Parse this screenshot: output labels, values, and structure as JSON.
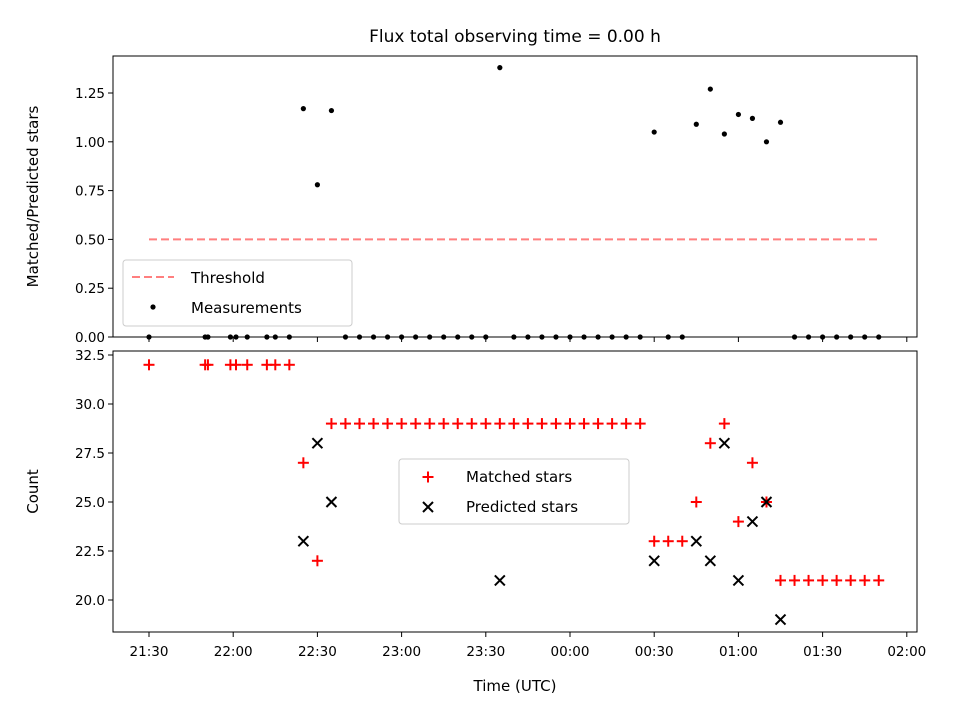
{
  "title": "Flux total observing time = 0.00 h",
  "xlabel": "Time (UTC)",
  "colors": {
    "measurement": "#000000",
    "threshold": "#ff7f7f",
    "matched": "#ff0000",
    "predicted": "#000000"
  },
  "chart_data": [
    {
      "type": "scatter",
      "panel": "top",
      "ylabel": "Matched/Predicted stars",
      "x_ticks": [
        "21:30",
        "22:00",
        "22:30",
        "23:00",
        "23:30",
        "00:00",
        "00:30",
        "01:00",
        "01:30",
        "02:00"
      ],
      "y_ticks": [
        "0.00",
        "0.25",
        "0.50",
        "0.75",
        "1.00",
        "1.25"
      ],
      "ylim": [
        0,
        1.44
      ],
      "grid": false,
      "legend_position": "lower-left",
      "threshold": {
        "name": "Threshold",
        "value": 0.5,
        "x_start": "21:30",
        "x_end": "01:50"
      },
      "series": [
        {
          "name": "Measurements",
          "points": [
            [
              "21:30",
              0
            ],
            [
              "21:50",
              0
            ],
            [
              "21:51",
              0
            ],
            [
              "21:59",
              0
            ],
            [
              "22:01",
              0
            ],
            [
              "22:05",
              0
            ],
            [
              "22:12",
              0
            ],
            [
              "22:15",
              0
            ],
            [
              "22:20",
              0
            ],
            [
              "22:25",
              1.17
            ],
            [
              "22:30",
              0.78
            ],
            [
              "22:35",
              1.16
            ],
            [
              "22:40",
              0
            ],
            [
              "22:45",
              0
            ],
            [
              "22:50",
              0
            ],
            [
              "22:55",
              0
            ],
            [
              "23:00",
              0
            ],
            [
              "23:05",
              0
            ],
            [
              "23:10",
              0
            ],
            [
              "23:15",
              0
            ],
            [
              "23:20",
              0
            ],
            [
              "23:25",
              0
            ],
            [
              "23:30",
              0
            ],
            [
              "23:35",
              1.38
            ],
            [
              "23:40",
              0
            ],
            [
              "23:45",
              0
            ],
            [
              "23:50",
              0
            ],
            [
              "23:55",
              0
            ],
            [
              "00:00",
              0
            ],
            [
              "00:05",
              0
            ],
            [
              "00:10",
              0
            ],
            [
              "00:15",
              0
            ],
            [
              "00:20",
              0
            ],
            [
              "00:25",
              0
            ],
            [
              "00:30",
              1.05
            ],
            [
              "00:35",
              0
            ],
            [
              "00:40",
              0
            ],
            [
              "00:45",
              1.09
            ],
            [
              "00:50",
              1.27
            ],
            [
              "00:55",
              1.04
            ],
            [
              "01:00",
              1.14
            ],
            [
              "01:05",
              1.12
            ],
            [
              "01:10",
              1.0
            ],
            [
              "01:15",
              1.1
            ],
            [
              "01:20",
              0
            ],
            [
              "01:25",
              0
            ],
            [
              "01:30",
              0
            ],
            [
              "01:35",
              0
            ],
            [
              "01:40",
              0
            ],
            [
              "01:45",
              0
            ],
            [
              "01:50",
              0
            ]
          ]
        }
      ]
    },
    {
      "type": "scatter",
      "panel": "bottom",
      "ylabel": "Count",
      "x_ticks": [
        "21:30",
        "22:00",
        "22:30",
        "23:00",
        "23:30",
        "00:00",
        "00:30",
        "01:00",
        "01:30",
        "02:00"
      ],
      "y_ticks": [
        "20.0",
        "22.5",
        "25.0",
        "27.5",
        "30.0",
        "32.5"
      ],
      "ylim": [
        18.4,
        32.5
      ],
      "grid": false,
      "legend_position": "center",
      "series": [
        {
          "name": "Matched stars",
          "marker": "+",
          "points": [
            [
              "21:30",
              32
            ],
            [
              "21:50",
              32
            ],
            [
              "21:51",
              32
            ],
            [
              "21:59",
              32
            ],
            [
              "22:01",
              32
            ],
            [
              "22:05",
              32
            ],
            [
              "22:12",
              32
            ],
            [
              "22:15",
              32
            ],
            [
              "22:20",
              32
            ],
            [
              "22:25",
              27
            ],
            [
              "22:30",
              22
            ],
            [
              "22:35",
              29
            ],
            [
              "22:40",
              29
            ],
            [
              "22:45",
              29
            ],
            [
              "22:50",
              29
            ],
            [
              "22:55",
              29
            ],
            [
              "23:00",
              29
            ],
            [
              "23:05",
              29
            ],
            [
              "23:10",
              29
            ],
            [
              "23:15",
              29
            ],
            [
              "23:20",
              29
            ],
            [
              "23:25",
              29
            ],
            [
              "23:30",
              29
            ],
            [
              "23:35",
              29
            ],
            [
              "23:40",
              29
            ],
            [
              "23:45",
              29
            ],
            [
              "23:50",
              29
            ],
            [
              "23:55",
              29
            ],
            [
              "00:00",
              29
            ],
            [
              "00:05",
              29
            ],
            [
              "00:10",
              29
            ],
            [
              "00:15",
              29
            ],
            [
              "00:20",
              29
            ],
            [
              "00:25",
              29
            ],
            [
              "00:30",
              23
            ],
            [
              "00:35",
              23
            ],
            [
              "00:40",
              23
            ],
            [
              "00:45",
              25
            ],
            [
              "00:50",
              28
            ],
            [
              "00:55",
              29
            ],
            [
              "01:00",
              24
            ],
            [
              "01:05",
              27
            ],
            [
              "01:10",
              25
            ],
            [
              "01:15",
              21
            ],
            [
              "01:20",
              21
            ],
            [
              "01:25",
              21
            ],
            [
              "01:30",
              21
            ],
            [
              "01:35",
              21
            ],
            [
              "01:40",
              21
            ],
            [
              "01:45",
              21
            ],
            [
              "01:50",
              21
            ]
          ]
        },
        {
          "name": "Predicted stars",
          "marker": "x",
          "points": [
            [
              "22:25",
              23
            ],
            [
              "22:30",
              28
            ],
            [
              "22:35",
              25
            ],
            [
              "23:35",
              21
            ],
            [
              "00:30",
              22
            ],
            [
              "00:45",
              23
            ],
            [
              "00:50",
              22
            ],
            [
              "00:55",
              28
            ],
            [
              "01:00",
              21
            ],
            [
              "01:05",
              24
            ],
            [
              "01:10",
              25
            ],
            [
              "01:15",
              19
            ]
          ]
        }
      ]
    }
  ]
}
